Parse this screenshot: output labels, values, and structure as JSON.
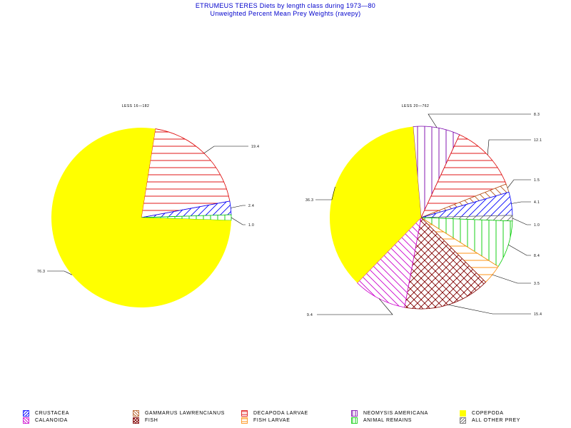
{
  "title": "ETRUMEUS TERES Diets by length class during 1973—80",
  "subtitle": "Unweighted Percent Mean Prey Weights (ravepy)",
  "chart_data": [
    {
      "type": "pie",
      "header": "LESS 16—182",
      "slices": [
        {
          "category": "decapoda",
          "value": 19.4,
          "label": "19.4"
        },
        {
          "category": "crustacea",
          "value": 2.4,
          "label": "2.4"
        },
        {
          "category": "animal",
          "value": 1.0,
          "label": "1.0"
        },
        {
          "category": "copepoda",
          "value": 76.3,
          "label": "76.3"
        }
      ]
    },
    {
      "type": "pie",
      "header": "LESS 20—762",
      "slices": [
        {
          "category": "neomysis",
          "value": 8.3,
          "label": "8.3"
        },
        {
          "category": "decapoda",
          "value": 12.1,
          "label": "12.1"
        },
        {
          "category": "gammarus",
          "value": 1.5,
          "label": "1.5"
        },
        {
          "category": "crustacea",
          "value": 4.1,
          "label": "4.1"
        },
        {
          "category": "other",
          "value": 1.0,
          "label": "1.0"
        },
        {
          "category": "animal",
          "value": 8.4,
          "label": "8.4"
        },
        {
          "category": "fishlarvae",
          "value": 3.5,
          "label": "3.5"
        },
        {
          "category": "fish",
          "value": 15.4,
          "label": "15.4"
        },
        {
          "category": "calanoida",
          "value": 9.4,
          "label": "9.4"
        },
        {
          "category": "copepoda",
          "value": 36.3,
          "label": "36.3"
        }
      ]
    }
  ],
  "legend": [
    {
      "key": "crustacea",
      "label": "CRUSTACEA",
      "color": "#0000ff",
      "pattern": "diag-up"
    },
    {
      "key": "calanoida",
      "label": "CALANOIDA",
      "color": "#cc00cc",
      "pattern": "diag-down"
    },
    {
      "key": "gammarus",
      "label": "GAMMARUS LAWRENCIANUS",
      "color": "#b35a1f",
      "pattern": "diag-down"
    },
    {
      "key": "fish",
      "label": "FISH",
      "color": "#800000",
      "pattern": "cross"
    },
    {
      "key": "decapoda",
      "label": "DECAPODA LARVAE",
      "color": "#dd0000",
      "pattern": "horizontal"
    },
    {
      "key": "fishlarvae",
      "label": "FISH LARVAE",
      "color": "#ff8800",
      "pattern": "horizontal"
    },
    {
      "key": "neomysis",
      "label": "NEOMYSIS AMERICANA",
      "color": "#7700aa",
      "pattern": "vertical"
    },
    {
      "key": "animal",
      "label": "ANIMAL REMAINS",
      "color": "#00cc00",
      "pattern": "vertical"
    },
    {
      "key": "copepoda",
      "label": "COPEPODA",
      "color": "#ffff00",
      "pattern": "solid"
    },
    {
      "key": "other",
      "label": "ALL OTHER PREY",
      "color": "#666666",
      "pattern": "diag-up"
    }
  ]
}
